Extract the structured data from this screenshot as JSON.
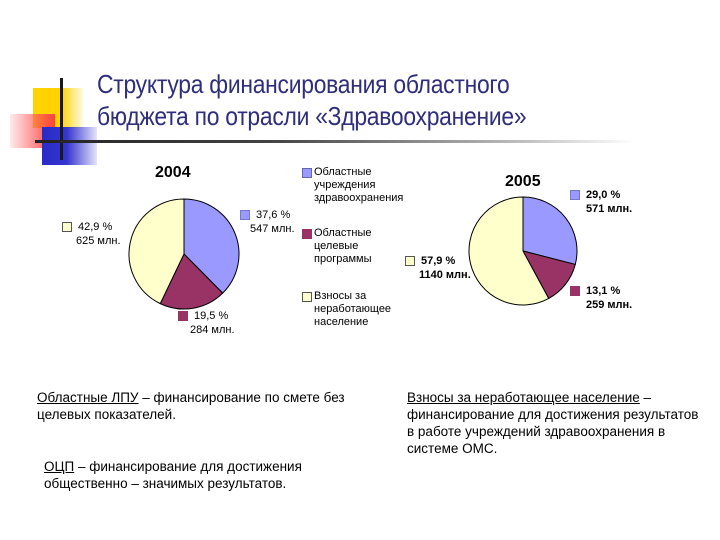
{
  "header": {
    "title_line1": "Структура финансирования областного",
    "title_line2": "бюджета по отрасли «Здравоохранение»"
  },
  "legend": {
    "items": [
      {
        "label": "Областные\nучреждения\nздравоохранения",
        "color": "#9999ff"
      },
      {
        "label": "Областные\nцелевые\nпрограммы",
        "color": "#993366"
      },
      {
        "label": "Взносы за\nнеработающее\nнаселение",
        "color": "#ffffcc"
      }
    ]
  },
  "chart_data": [
    {
      "type": "pie",
      "title": "2004",
      "categories": [
        "Областные учреждения здравоохранения",
        "Областные целевые программы",
        "Взносы за неработающее население"
      ],
      "values": [
        37.6,
        19.5,
        42.9
      ],
      "amounts": [
        "547 млн.",
        "284 млн.",
        "625 млн."
      ],
      "percent_labels": [
        "37,6 %",
        "19,5 %",
        "42,9 %"
      ],
      "colors": [
        "#9999ff",
        "#993366",
        "#ffffcc"
      ]
    },
    {
      "type": "pie",
      "title": "2005",
      "categories": [
        "Областные учреждения здравоохранения",
        "Областные целевые программы",
        "Взносы за неработающее население"
      ],
      "values": [
        29.0,
        13.1,
        57.9
      ],
      "amounts": [
        "571 млн.",
        "259 млн.",
        "1140 млн."
      ],
      "percent_labels": [
        "29,0 %",
        "13,1 %",
        "57,9 %"
      ],
      "colors": [
        "#9999ff",
        "#993366",
        "#ffffcc"
      ]
    }
  ],
  "notes": {
    "lpu_term": "Областные ЛПУ",
    "lpu_text": " – финансирование по смете без целевых показателей.",
    "ocp_term": "ОЦП",
    "ocp_text": " – финансирование для достижения общественно – значимых результатов.",
    "vznosy_term": "Взносы за неработающее население",
    "vznosy_text": " – финансирование для достижения результатов в работе учреждений здравоохранения в системе ОМС."
  }
}
